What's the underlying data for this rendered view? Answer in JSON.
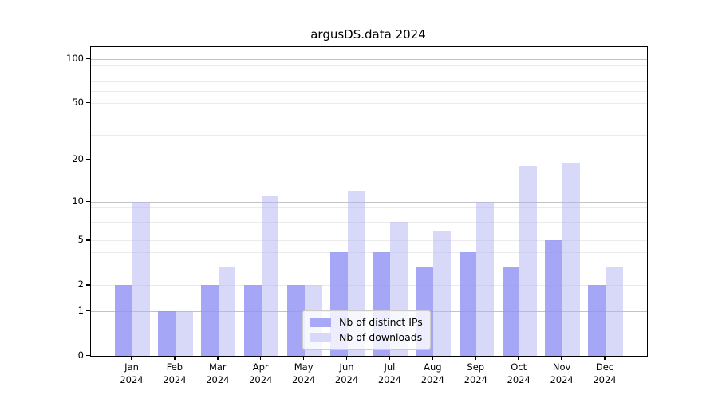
{
  "title": "argusDS.data 2024",
  "chart_data": {
    "type": "bar",
    "title": "argusDS.data 2024",
    "year_label": "2024",
    "categories": [
      "Jan",
      "Feb",
      "Mar",
      "Apr",
      "May",
      "Jun",
      "Jul",
      "Aug",
      "Sep",
      "Oct",
      "Nov",
      "Dec"
    ],
    "series": [
      {
        "name": "Nb of distinct IPs",
        "color": "#a8a8f6",
        "fill": "rgba(146,146,244,0.82)",
        "values": [
          2,
          1,
          2,
          2,
          2,
          4,
          4,
          3,
          4,
          3,
          5,
          2
        ]
      },
      {
        "name": "Nb of downloads",
        "color": "#d8d8f8",
        "fill": "rgba(177,177,241,0.5)",
        "values": [
          10,
          1,
          3,
          11,
          2,
          12,
          7,
          6,
          10,
          18,
          19,
          3
        ]
      }
    ],
    "xlabel": "",
    "ylabel": "",
    "scale": "log1p",
    "ylim": [
      0,
      120
    ],
    "y_ticks": [
      0,
      1,
      2,
      5,
      10,
      20,
      50,
      100
    ],
    "major_grid_values": [
      1,
      10,
      100
    ],
    "minor_grid_values": [
      2,
      3,
      4,
      5,
      6,
      7,
      8,
      9,
      20,
      30,
      40,
      50,
      60,
      70,
      80,
      90
    ],
    "grid": true,
    "legend_position": "lower center"
  },
  "colors": {
    "major_grid": "#c3c3c3",
    "minor_grid": "#ebebeb",
    "spine": "#000000",
    "text": "#000000",
    "legend_border": "#cccccc",
    "legend_background": "rgba(255,255,255,0.8)"
  }
}
